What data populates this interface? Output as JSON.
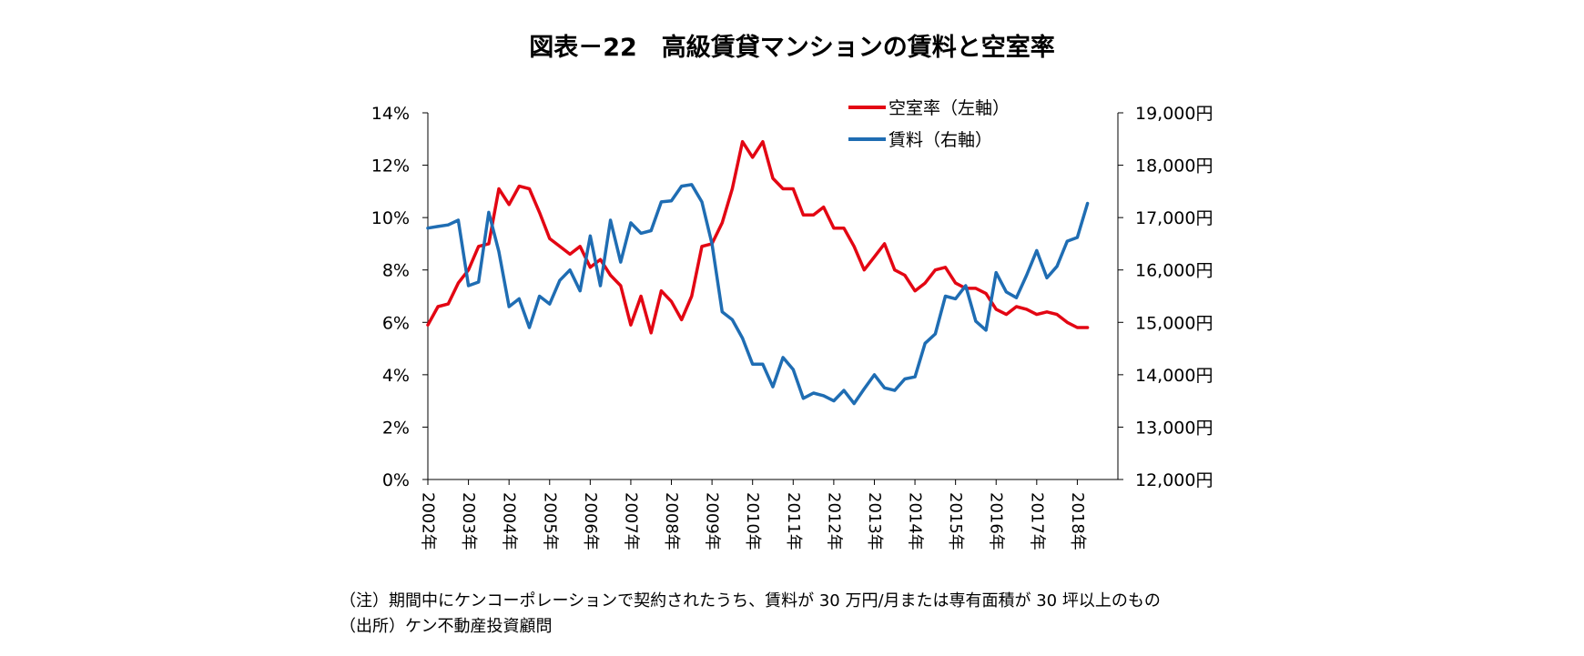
{
  "title": "図表－22　高級賃貸マンションの賃料と空室率",
  "notes": {
    "note1": "（注）期間中にケンコーポレーションで契約されたうち、賃料が 30 万円/月または専有面積が 30 坪以上のもの",
    "note2": "（出所）ケン不動産投資顧問"
  },
  "colors": {
    "vacancy": "#e30613",
    "rent": "#1f6db3"
  },
  "chart_data": {
    "type": "line",
    "title": "図表－22　高級賃貸マンションの賃料と空室率",
    "x_start": 2002.0,
    "x_step": 0.25,
    "x_range": [
      2002.0,
      2019.0
    ],
    "x_tick_labels": [
      "2002年",
      "2003年",
      "2004年",
      "2005年",
      "2006年",
      "2007年",
      "2008年",
      "2009年",
      "2010年",
      "2011年",
      "2012年",
      "2013年",
      "2014年",
      "2015年",
      "2016年",
      "2017年",
      "2018年"
    ],
    "y_left": {
      "label": "空室率",
      "min": 0,
      "max": 14,
      "tick_labels": [
        "0%",
        "2%",
        "4%",
        "6%",
        "8%",
        "10%",
        "12%",
        "14%"
      ]
    },
    "y_right": {
      "label": "賃料",
      "min": 12000,
      "max": 19000,
      "tick_labels": [
        "12,000円",
        "13,000円",
        "14,000円",
        "15,000円",
        "16,000円",
        "17,000円",
        "18,000円",
        "19,000円"
      ]
    },
    "legend_position": "top-right",
    "series": [
      {
        "name": "空室率（左軸）",
        "axis": "left",
        "unit": "%",
        "values": [
          5.9,
          6.6,
          6.7,
          7.5,
          8.0,
          8.9,
          9.0,
          11.1,
          10.5,
          11.2,
          11.1,
          10.2,
          9.2,
          8.9,
          8.6,
          8.9,
          8.1,
          8.4,
          7.8,
          7.4,
          5.9,
          7.0,
          5.6,
          7.2,
          6.8,
          6.1,
          7.0,
          8.9,
          9.0,
          9.8,
          11.1,
          12.9,
          12.3,
          12.9,
          11.5,
          11.1,
          11.1,
          10.1,
          10.1,
          10.4,
          9.6,
          9.6,
          8.9,
          8.0,
          8.5,
          9.0,
          8.0,
          7.8,
          7.2,
          7.5,
          8.0,
          8.1,
          7.5,
          7.3,
          7.3,
          7.1,
          6.5,
          6.3,
          6.6,
          6.5,
          6.3,
          6.4,
          6.3,
          6.0,
          5.8,
          5.8
        ]
      },
      {
        "name": "賃料（右軸）",
        "axis": "right",
        "unit": "円",
        "values": [
          16800,
          16830,
          16860,
          16950,
          15700,
          15770,
          17100,
          16350,
          15300,
          15450,
          14900,
          15500,
          15350,
          15800,
          16000,
          15600,
          16650,
          15700,
          16950,
          16150,
          16900,
          16700,
          16750,
          17300,
          17320,
          17600,
          17630,
          17300,
          16500,
          15200,
          15050,
          14700,
          14200,
          14200,
          13770,
          14330,
          14100,
          13550,
          13650,
          13600,
          13500,
          13700,
          13450,
          13730,
          14000,
          13750,
          13700,
          13920,
          13960,
          14600,
          14780,
          15500,
          15450,
          15700,
          15020,
          14850,
          15950,
          15580,
          15470,
          15900,
          16370,
          15850,
          16070,
          16550,
          16620,
          17270
        ]
      }
    ]
  }
}
